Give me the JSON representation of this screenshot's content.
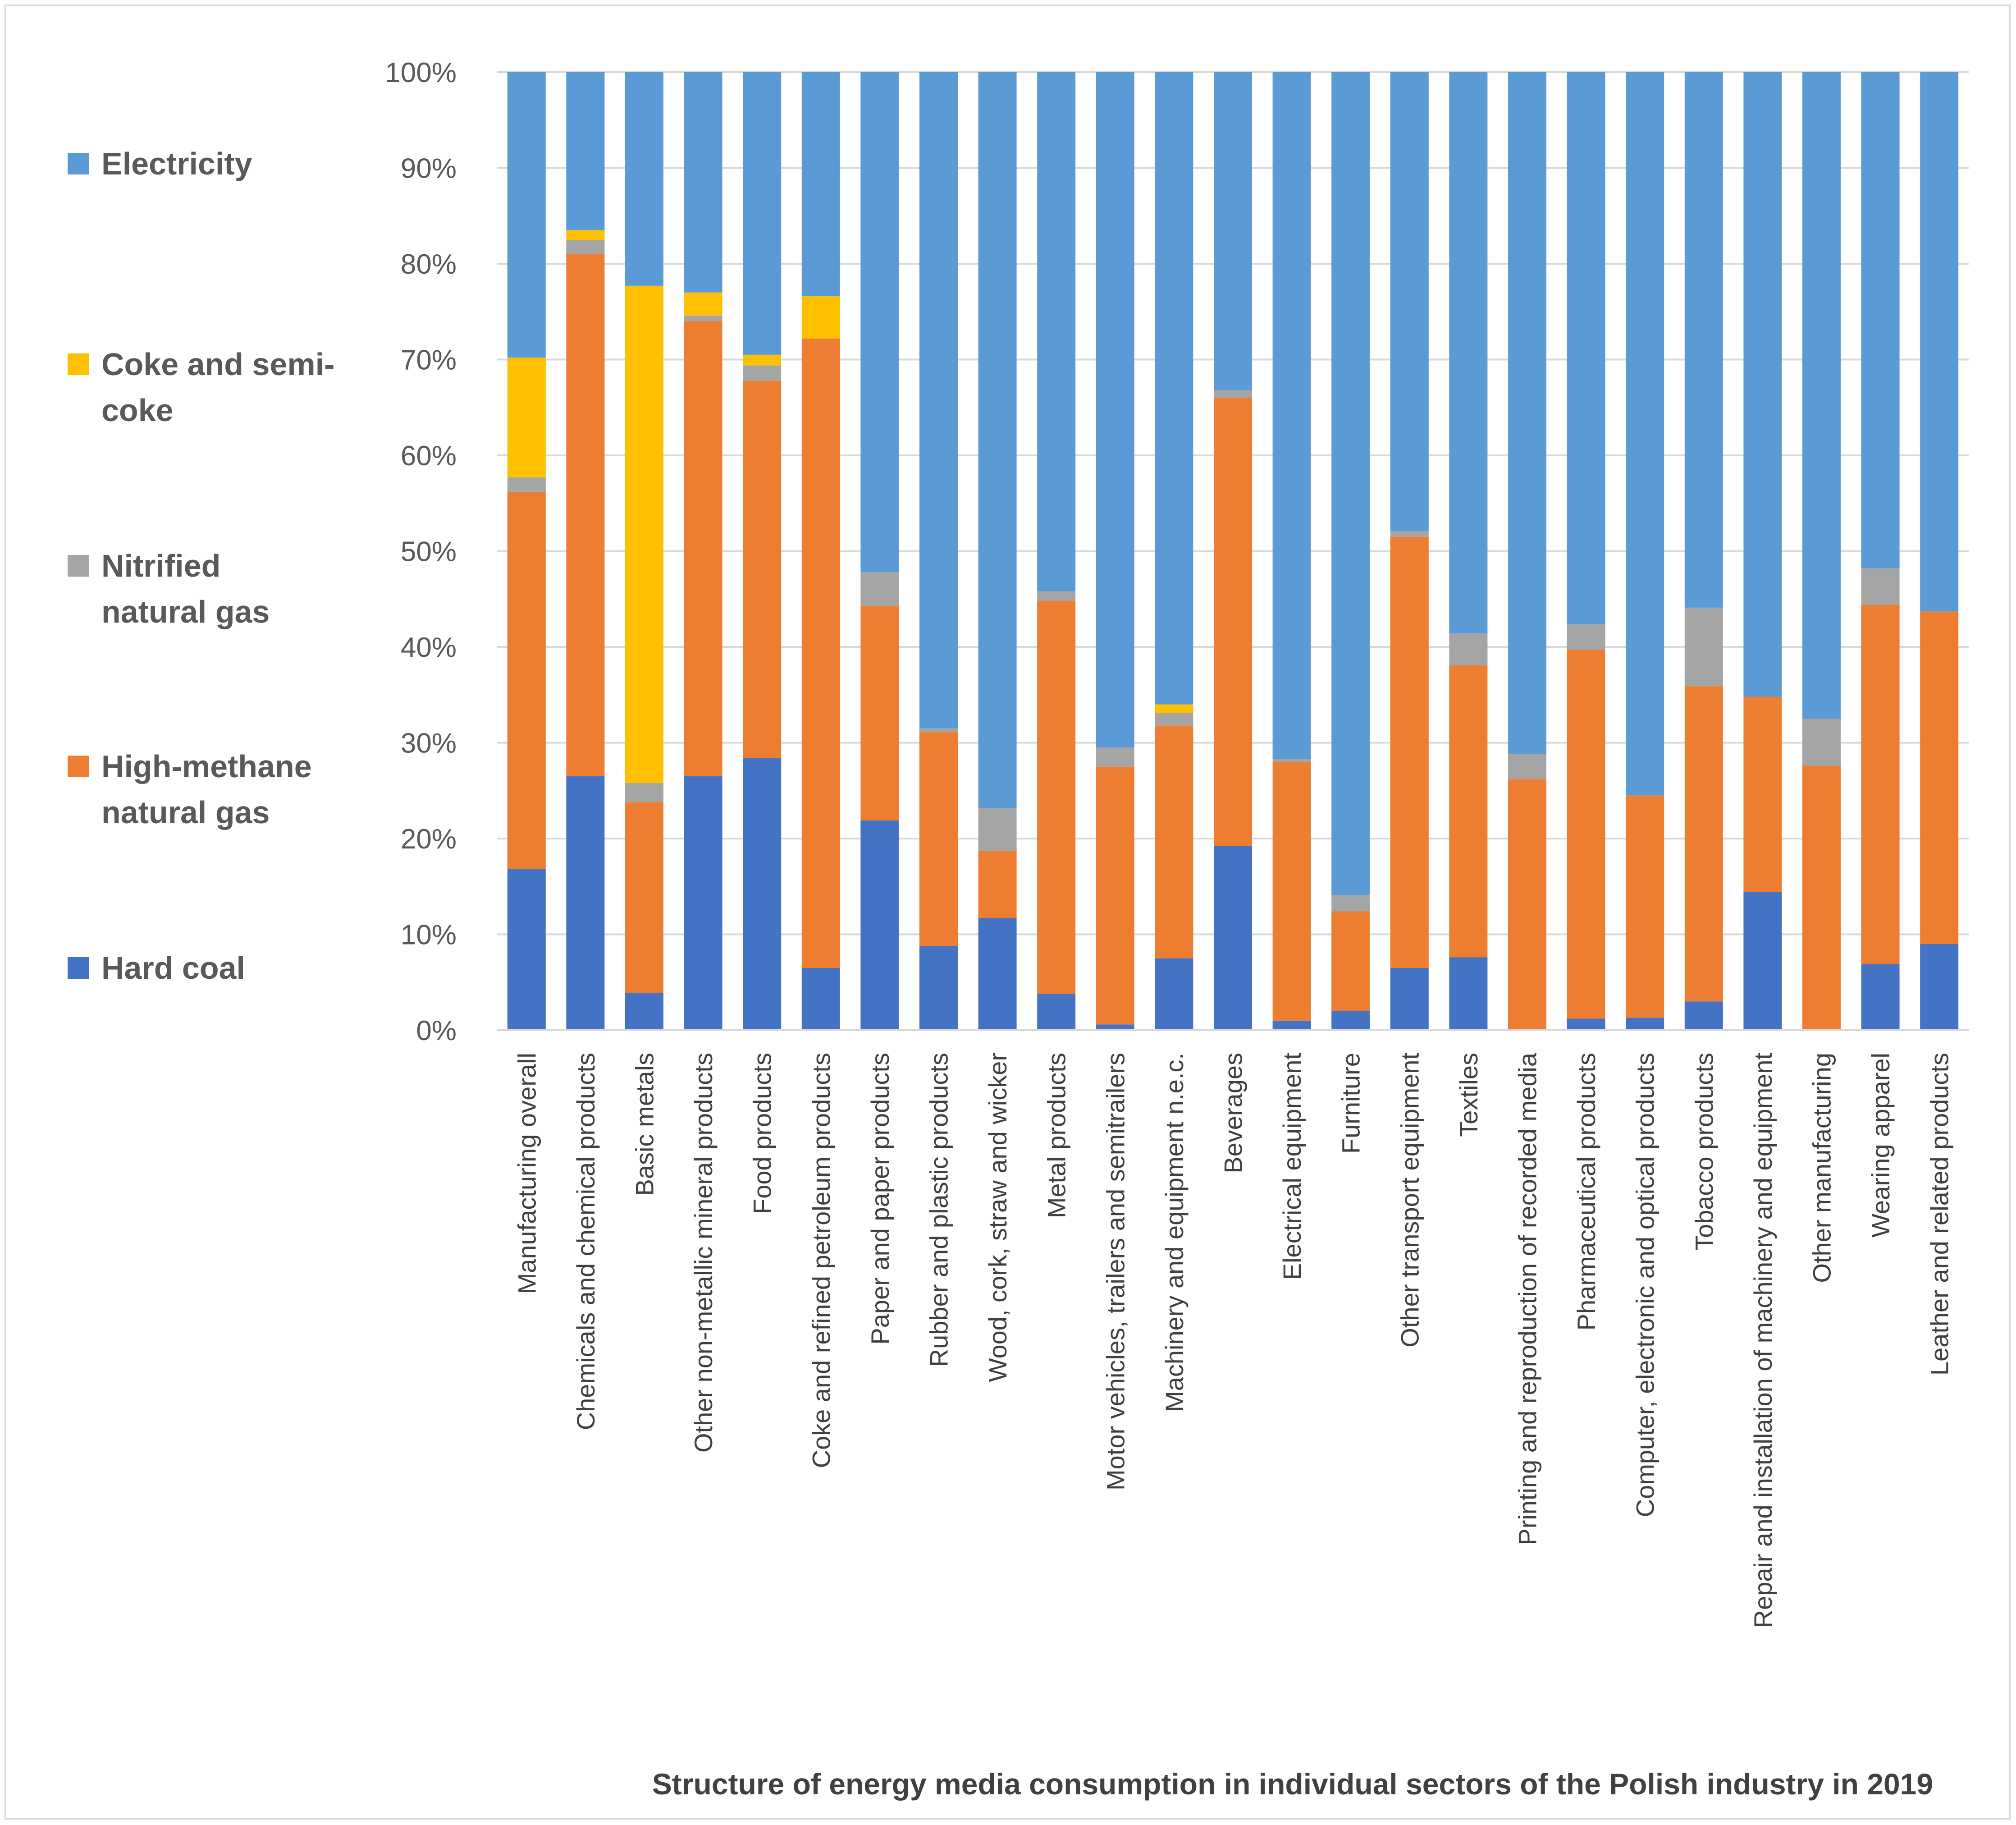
{
  "chart_data": {
    "type": "bar",
    "stacked": true,
    "normalized": true,
    "title": "Structure of energy media consumption in individual sectors of the Polish industry in 2019",
    "xlabel": "",
    "ylabel": "",
    "ylim": [
      0,
      100
    ],
    "yticks": [
      "0%",
      "10%",
      "20%",
      "30%",
      "40%",
      "50%",
      "60%",
      "70%",
      "80%",
      "90%",
      "100%"
    ],
    "grid": true,
    "legend_position": "left",
    "categories": [
      "Manufacturing overall",
      "Chemicals and chemical products",
      "Basic metals",
      "Other non-metallic mineral products",
      "Food products",
      "Coke and refined petroleum products",
      "Paper and paper products",
      "Rubber and plastic products",
      "Wood, cork, straw and wicker",
      "Metal products",
      "Motor vehicles, trailers and semitrailers",
      "Machinery and equipment  n.e.c.",
      "Beverages",
      "Electrical  equipment",
      "Furniture",
      "Other transport equipment",
      "Textiles",
      "Printing and reproduction of recorded media",
      "Pharmaceutical products",
      "Computer, electronic and optical products",
      "Tobacco products",
      "Repair and installation of machinery and equipment",
      "Other manufacturing",
      "Wearing apparel",
      "Leather and related products"
    ],
    "series": [
      {
        "name": "Hard coal",
        "color": "#4472c4",
        "values": [
          16.8,
          26.5,
          3.9,
          26.5,
          28.4,
          6.5,
          21.9,
          8.8,
          11.7,
          3.8,
          0.6,
          7.5,
          19.2,
          1.0,
          2.0,
          6.5,
          7.6,
          0.0,
          1.2,
          1.3,
          3.0,
          14.4,
          0.0,
          6.9,
          9.0
        ]
      },
      {
        "name": "High-methane natural gas",
        "color": "#ed7d31",
        "values": [
          39.4,
          54.5,
          19.9,
          47.5,
          39.4,
          65.7,
          22.4,
          22.3,
          7.0,
          41.0,
          26.9,
          24.3,
          46.8,
          27.0,
          10.4,
          45.0,
          30.5,
          26.2,
          38.5,
          23.2,
          32.9,
          20.4,
          27.6,
          37.5,
          34.7
        ]
      },
      {
        "name": "Nitrified natural gas",
        "color": "#a5a5a5",
        "values": [
          1.5,
          1.5,
          2.0,
          0.6,
          1.6,
          0.0,
          3.5,
          0.4,
          4.5,
          1.0,
          2.0,
          1.3,
          0.8,
          0.3,
          1.7,
          0.6,
          3.3,
          2.6,
          2.7,
          0.0,
          8.2,
          0.0,
          4.9,
          3.8,
          0.0
        ]
      },
      {
        "name": "Coke and semi-coke",
        "color": "#ffc000",
        "values": [
          12.5,
          1.0,
          51.9,
          2.4,
          1.1,
          4.4,
          0.0,
          0.0,
          0.0,
          0.0,
          0.0,
          0.9,
          0.0,
          0.0,
          0.0,
          0.0,
          0.0,
          0.0,
          0.0,
          0.0,
          0.0,
          0.0,
          0.0,
          0.0,
          0.0
        ]
      },
      {
        "name": "Electricity",
        "color": "#5b9bd5",
        "values": [
          29.8,
          16.5,
          22.3,
          23.0,
          29.5,
          23.4,
          52.2,
          68.5,
          76.8,
          54.2,
          70.5,
          66.0,
          33.2,
          71.7,
          85.9,
          47.9,
          58.6,
          71.2,
          57.6,
          75.5,
          55.9,
          65.2,
          67.5,
          51.8,
          56.3
        ]
      }
    ],
    "legend": [
      {
        "label_line1": "Electricity",
        "label_line2": "",
        "color": "#5b9bd5"
      },
      {
        "label_line1": "Coke and semi-",
        "label_line2": "coke",
        "color": "#ffc000"
      },
      {
        "label_line1": "Nitrified",
        "label_line2": "natural gas",
        "color": "#a5a5a5"
      },
      {
        "label_line1": "High-methane",
        "label_line2": "natural gas",
        "color": "#ed7d31"
      },
      {
        "label_line1": "Hard coal",
        "label_line2": "",
        "color": "#4472c4"
      }
    ]
  }
}
